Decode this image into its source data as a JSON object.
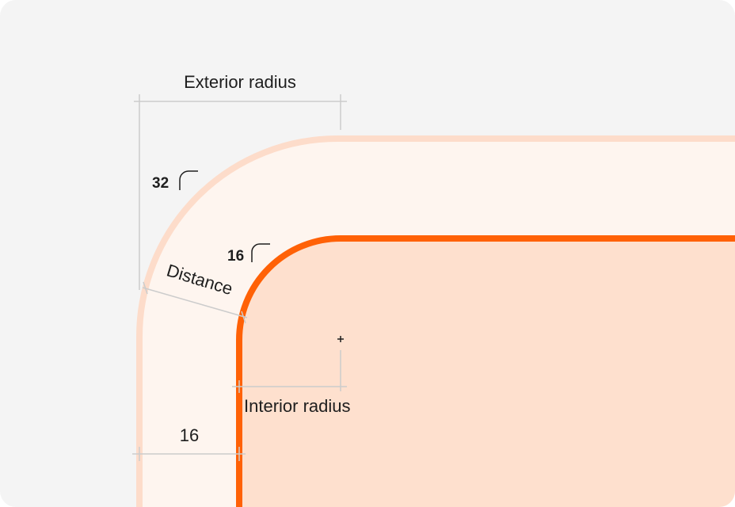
{
  "labels": {
    "exterior_radius": "Exterior radius",
    "exterior_value": "32",
    "interior_value": "16",
    "distance": "Distance",
    "interior_radius": "Interior radius",
    "gap_value": "16"
  },
  "colors": {
    "background": "#f4f4f4",
    "outer_fill": "#fef5ef",
    "outer_stroke": "#fddcca",
    "inner_fill": "#fee0ce",
    "inner_stroke": "#ff6106",
    "measure_line": "#cccccc",
    "text": "#1e1e1e"
  },
  "icons": {
    "exterior_corner": "rounded-corner-icon",
    "interior_corner": "rounded-corner-icon",
    "center_marker": "crosshair-icon"
  }
}
